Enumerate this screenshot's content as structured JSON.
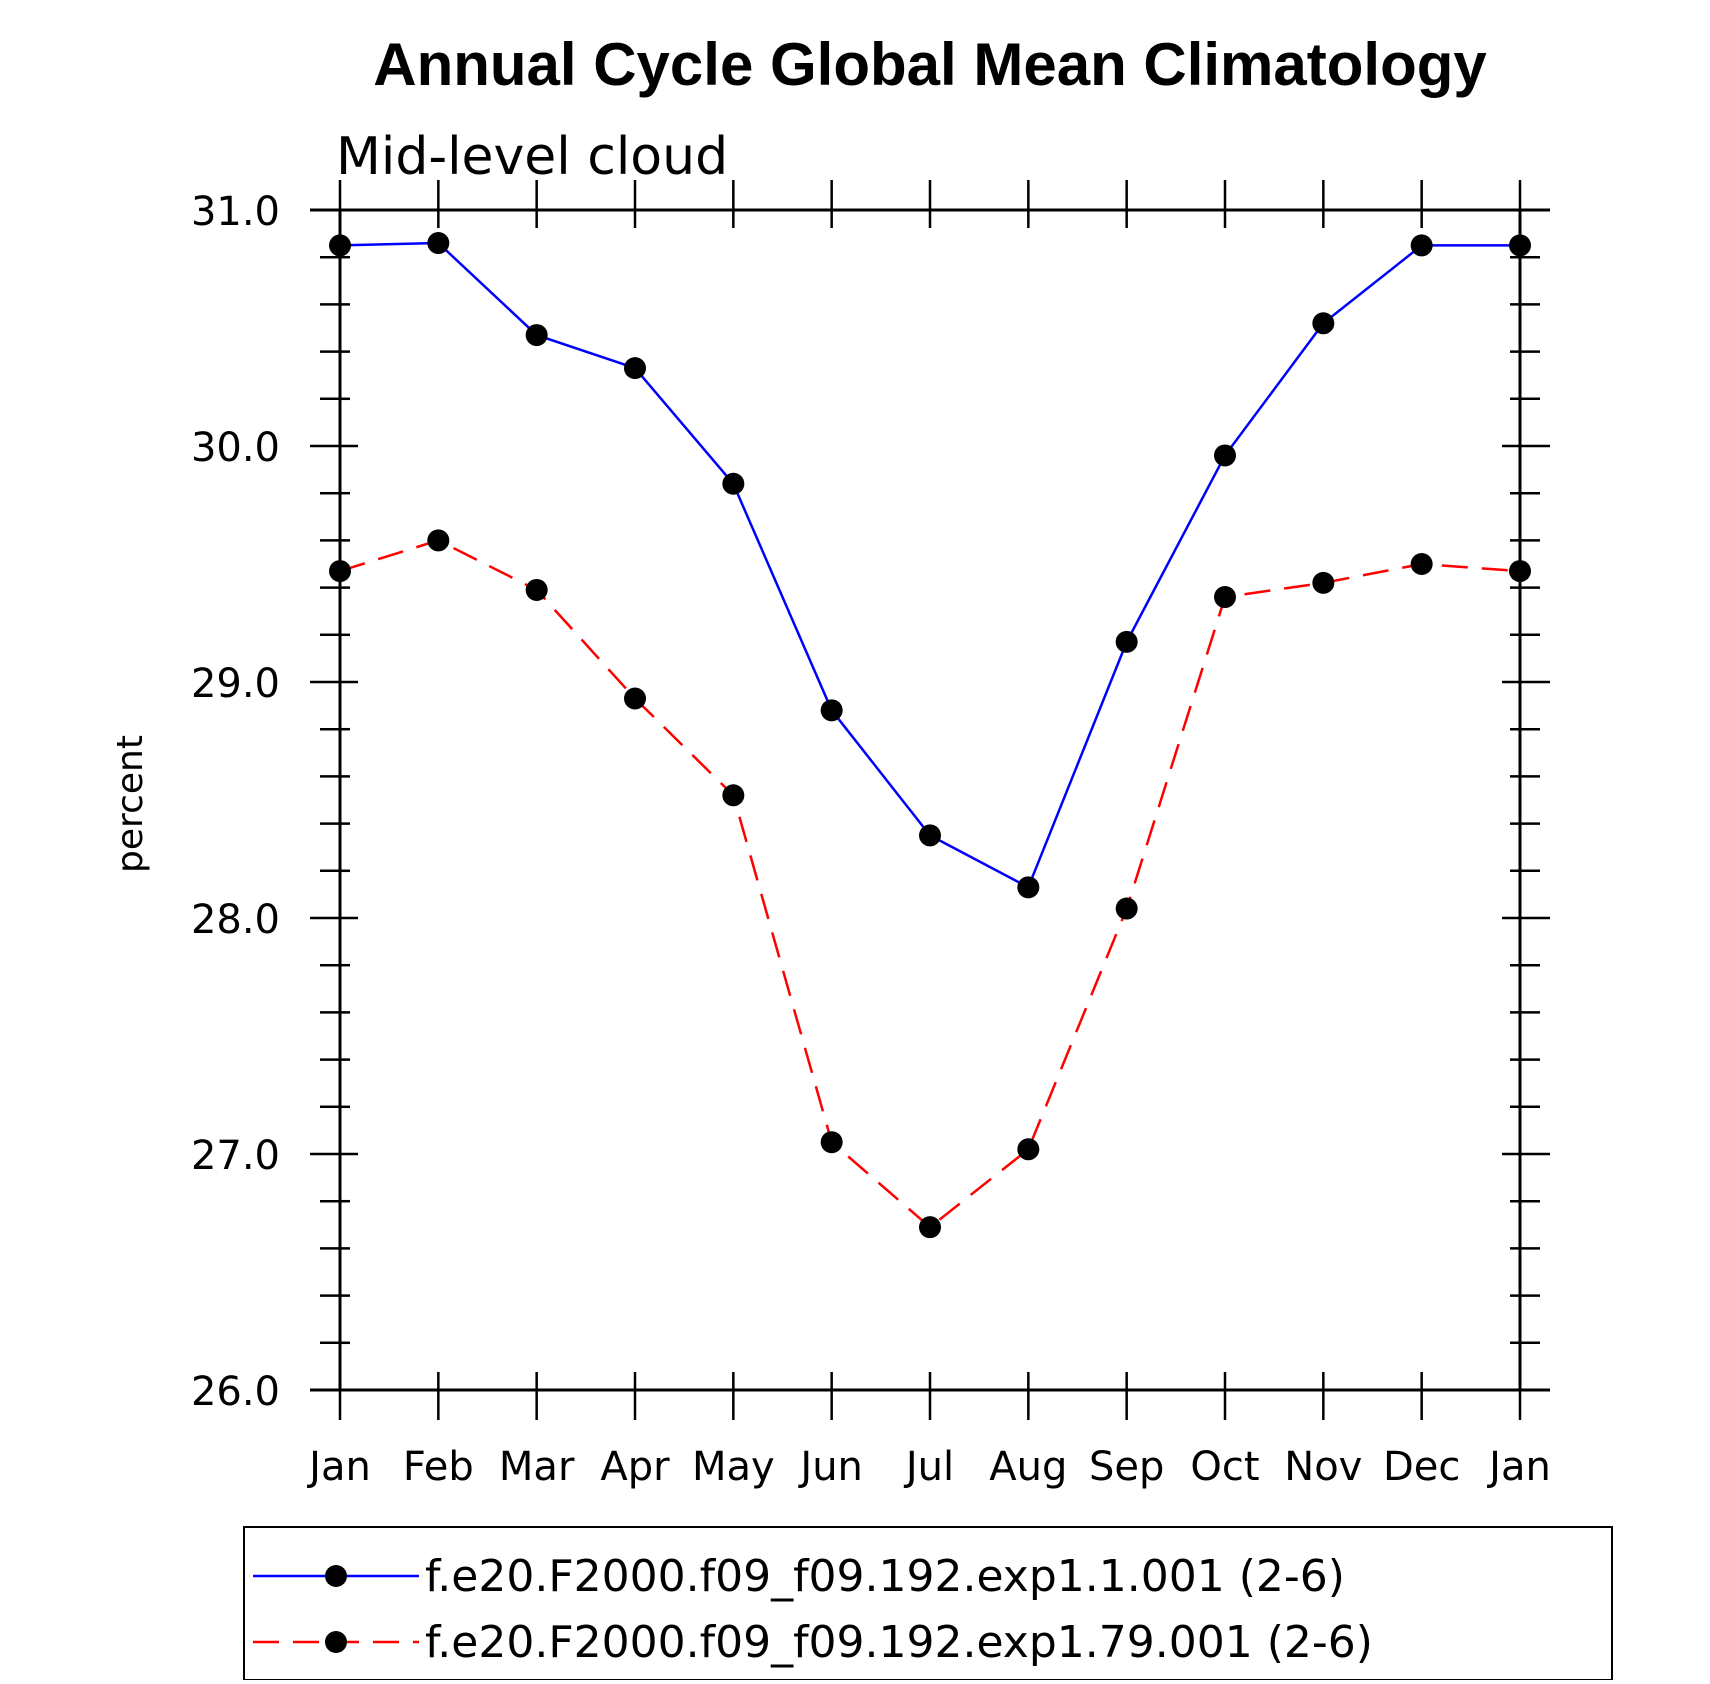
{
  "chart_data": {
    "type": "line",
    "title": "Annual Cycle Global Mean Climatology",
    "subtitle": "Mid-level cloud",
    "xlabel": "",
    "ylabel": "percent",
    "categories": [
      "Jan",
      "Feb",
      "Mar",
      "Apr",
      "May",
      "Jun",
      "Jul",
      "Aug",
      "Sep",
      "Oct",
      "Nov",
      "Dec",
      "Jan"
    ],
    "y_ticks": [
      "26.0",
      "27.0",
      "28.0",
      "29.0",
      "30.0",
      "31.0"
    ],
    "ylim": [
      26.0,
      31.0
    ],
    "grid": false,
    "legend_position": "bottom",
    "series": [
      {
        "name": "f.e20.F2000.f09_f09.192.exp1.1.001 (2-6)",
        "color": "#0000ff",
        "line_style": "solid",
        "marker": "filled-circle",
        "values": [
          30.85,
          30.86,
          30.47,
          30.33,
          29.84,
          28.88,
          28.35,
          28.13,
          29.17,
          29.96,
          30.52,
          30.85,
          30.85
        ]
      },
      {
        "name": "f.e20.F2000.f09_f09.192.exp1.79.001 (2-6)",
        "color": "#ff0000",
        "line_style": "dashed",
        "marker": "filled-circle",
        "values": [
          29.47,
          29.6,
          29.39,
          28.93,
          28.52,
          27.05,
          26.69,
          27.02,
          28.04,
          29.36,
          29.42,
          29.5,
          29.47
        ]
      }
    ]
  }
}
